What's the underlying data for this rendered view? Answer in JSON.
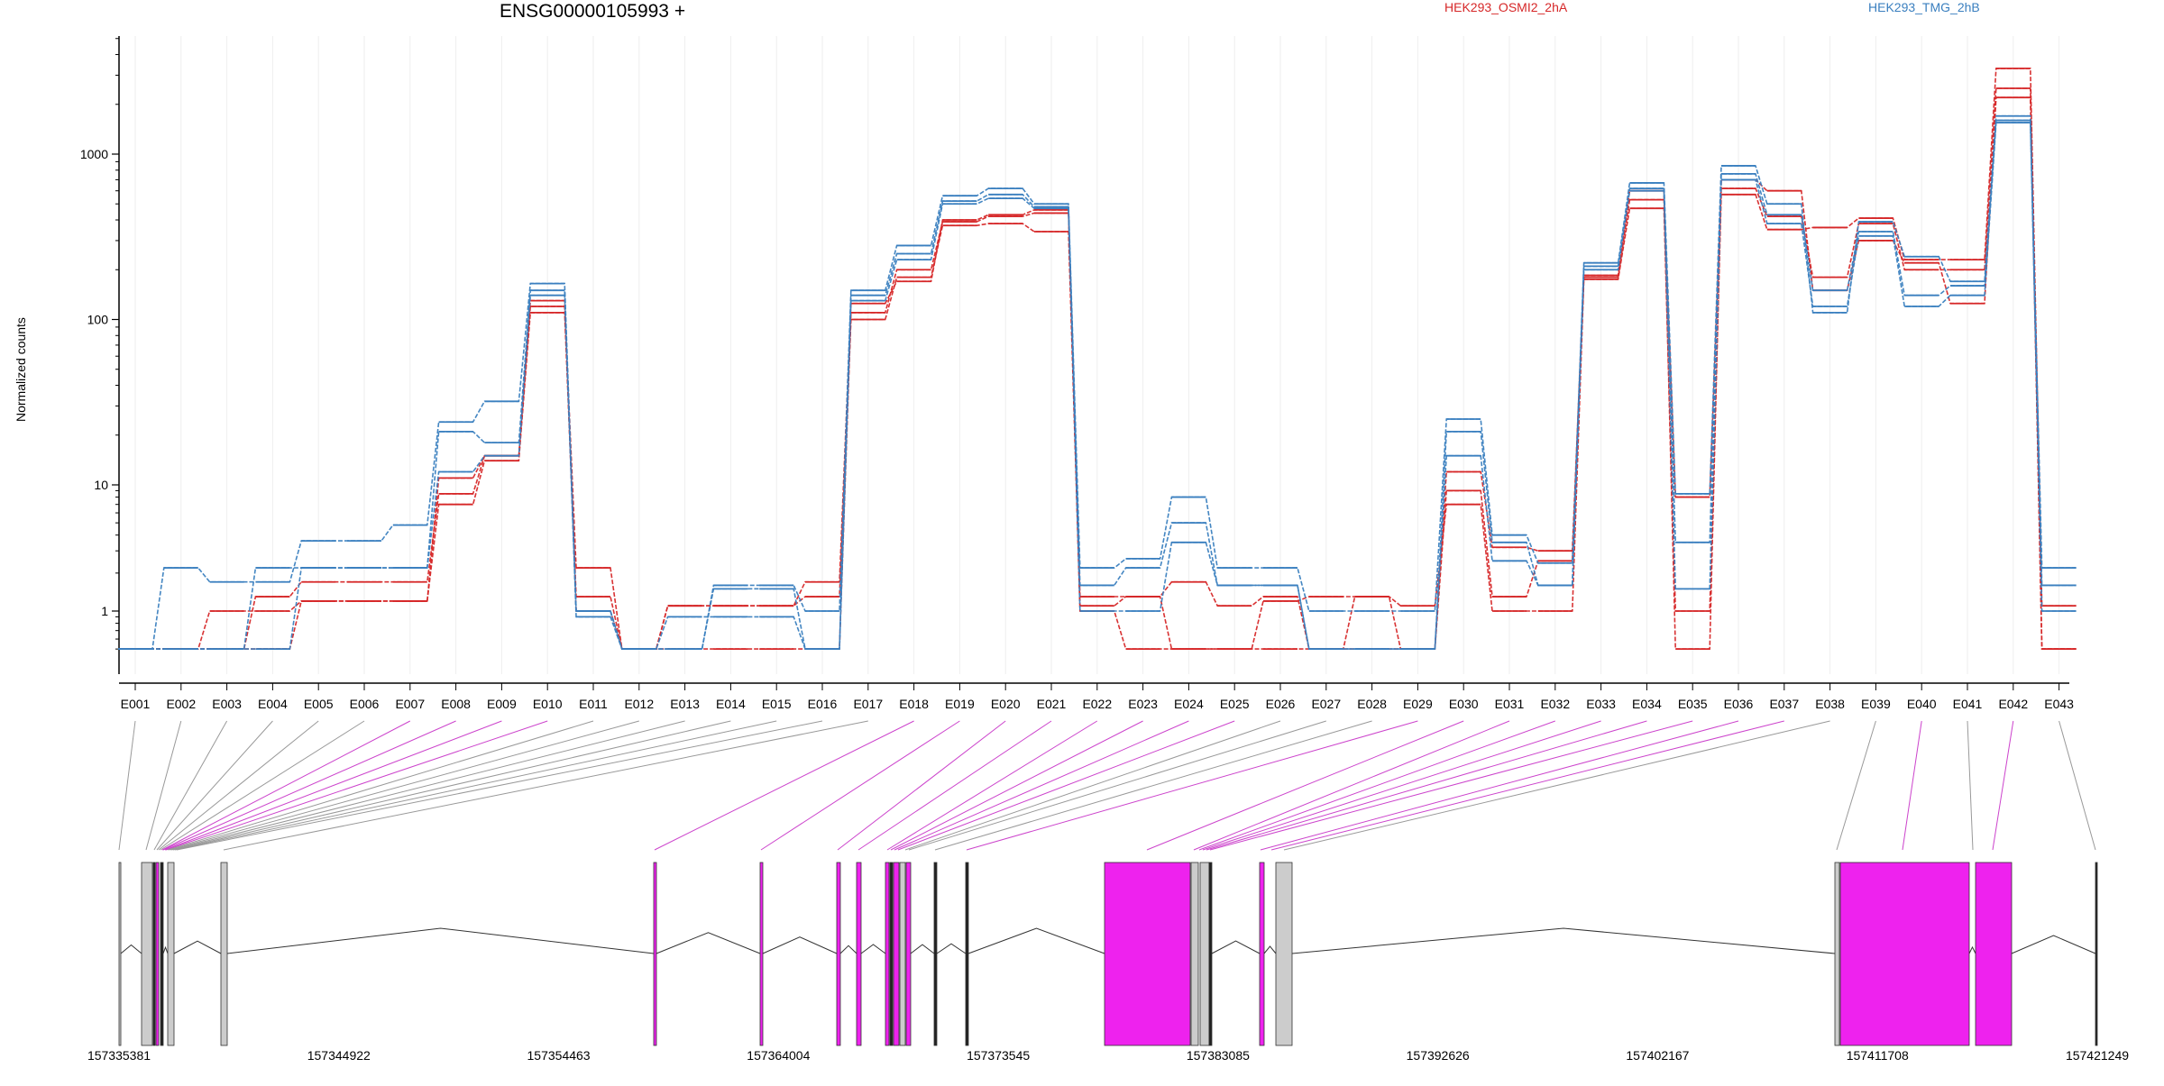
{
  "title": "ENSG00000105993 +",
  "ylabel": "Normalized counts",
  "colors": {
    "series_a": "#d62728",
    "series_b": "#3a7fbf",
    "exon_gray": "#cccccc",
    "exon_magenta": "#ee22ee",
    "connector_gray": "#999999",
    "connector_magenta": "#cc44cc"
  },
  "legend": [
    {
      "name": "HEK293_OSMI2_2hA",
      "color": "#d62728"
    },
    {
      "name": "HEK293_TMG_2hB",
      "color": "#3a7fbf"
    }
  ],
  "chart_data": {
    "type": "line",
    "title": "ENSG00000105993 +",
    "ylabel": "Normalized counts",
    "yscale": "log",
    "ylim": [
      0.3,
      5000
    ],
    "yticks": [
      1,
      10,
      100,
      1000
    ],
    "ytick_labels": [
      "1",
      "10",
      "100",
      "1000"
    ],
    "grid": "vertical lines at exons",
    "legend_position": "top-right",
    "categories": [
      "E001",
      "E002",
      "E003",
      "E004",
      "E005",
      "E006",
      "E007",
      "E008",
      "E009",
      "E010",
      "E011",
      "E012",
      "E013",
      "E014",
      "E015",
      "E016",
      "E017",
      "E018",
      "E019",
      "E020",
      "E021",
      "E022",
      "E023",
      "E024",
      "E025",
      "E026",
      "E027",
      "E028",
      "E029",
      "E030",
      "E031",
      "E032",
      "E033",
      "E034",
      "E035",
      "E036",
      "E037",
      "E038",
      "E039",
      "E040",
      "E041",
      "E042",
      "E043"
    ],
    "series": [
      {
        "group": "HEK293_OSMI2_2hA",
        "color": "#d62728",
        "values": [
          0.5,
          0.5,
          1.0,
          1.0,
          1.2,
          1.2,
          1.2,
          7,
          14,
          110,
          1.3,
          0.5,
          1.1,
          1.1,
          1.1,
          1.3,
          100,
          180,
          370,
          380,
          340,
          1.1,
          1.3,
          1.7,
          1.1,
          1.3,
          0.5,
          1.3,
          1.1,
          7,
          1.0,
          1.0,
          175,
          470,
          1.0,
          570,
          350,
          360,
          410,
          230,
          230,
          3300,
          1.1
        ]
      },
      {
        "group": "HEK293_OSMI2_2hA",
        "color": "#d62728",
        "values": [
          0.5,
          0.5,
          0.5,
          1.3,
          1.7,
          1.7,
          1.7,
          8.5,
          15,
          120,
          2.2,
          0.5,
          0.5,
          0.5,
          0.5,
          0.5,
          110,
          200,
          390,
          420,
          440,
          1.3,
          1.3,
          0.5,
          0.5,
          0.5,
          0.5,
          0.5,
          0.5,
          9,
          1.3,
          2.5,
          180,
          530,
          8,
          620,
          420,
          180,
          380,
          200,
          200,
          2500,
          0.5
        ]
      },
      {
        "group": "HEK293_OSMI2_2hA",
        "color": "#d62728",
        "values": [
          0.5,
          0.5,
          0.5,
          0.5,
          1.2,
          1.2,
          1.2,
          11,
          15,
          130,
          1.0,
          0.5,
          1.1,
          1.1,
          1.1,
          1.7,
          125,
          170,
          400,
          430,
          460,
          1.0,
          0.5,
          0.5,
          0.5,
          1.2,
          1.3,
          1.3,
          0.5,
          12,
          3.2,
          3,
          185,
          600,
          0.5,
          700,
          600,
          150,
          300,
          220,
          125,
          2200,
          0.5
        ]
      },
      {
        "group": "HEK293_TMG_2hB",
        "color": "#3a7fbf",
        "values": [
          0.5,
          2.2,
          1.7,
          1.7,
          3.6,
          3.6,
          4.8,
          24,
          32,
          165,
          1.0,
          0.5,
          0.5,
          1.6,
          1.6,
          1.0,
          150,
          280,
          560,
          620,
          500,
          2.2,
          2.6,
          8,
          2.2,
          2.2,
          1.0,
          1.0,
          1.0,
          25,
          4,
          2.4,
          220,
          670,
          8.5,
          850,
          500,
          110,
          390,
          240,
          170,
          1700,
          2.2
        ]
      },
      {
        "group": "HEK293_TMG_2hB",
        "color": "#3a7fbf",
        "values": [
          0.5,
          0.5,
          0.5,
          2.2,
          2.2,
          2.2,
          2.2,
          21,
          18,
          150,
          0.9,
          0.5,
          0.9,
          0.9,
          0.9,
          0.5,
          140,
          250,
          520,
          570,
          480,
          1.6,
          2.2,
          5,
          1.6,
          1.6,
          0.5,
          0.5,
          0.5,
          21,
          3.5,
          1.6,
          200,
          620,
          3.5,
          760,
          430,
          150,
          340,
          140,
          160,
          1600,
          1.6
        ]
      },
      {
        "group": "HEK293_TMG_2hB",
        "color": "#3a7fbf",
        "values": [
          0.5,
          0.5,
          0.5,
          0.5,
          2.2,
          2.2,
          2.2,
          12,
          15,
          140,
          1.0,
          0.5,
          0.5,
          1.5,
          1.5,
          0.5,
          130,
          230,
          500,
          540,
          470,
          1.0,
          1.0,
          3.5,
          1.6,
          1.6,
          0.5,
          0.5,
          0.5,
          15,
          2.5,
          1.6,
          210,
          600,
          1.5,
          700,
          380,
          120,
          320,
          120,
          140,
          1550,
          1.0
        ]
      }
    ],
    "gene_track": {
      "coordinate_labels": [
        "157335381",
        "157344922",
        "157354463",
        "157364004",
        "157373545",
        "157383085",
        "157392626",
        "157402167",
        "157411708",
        "157421249"
      ]
    }
  }
}
